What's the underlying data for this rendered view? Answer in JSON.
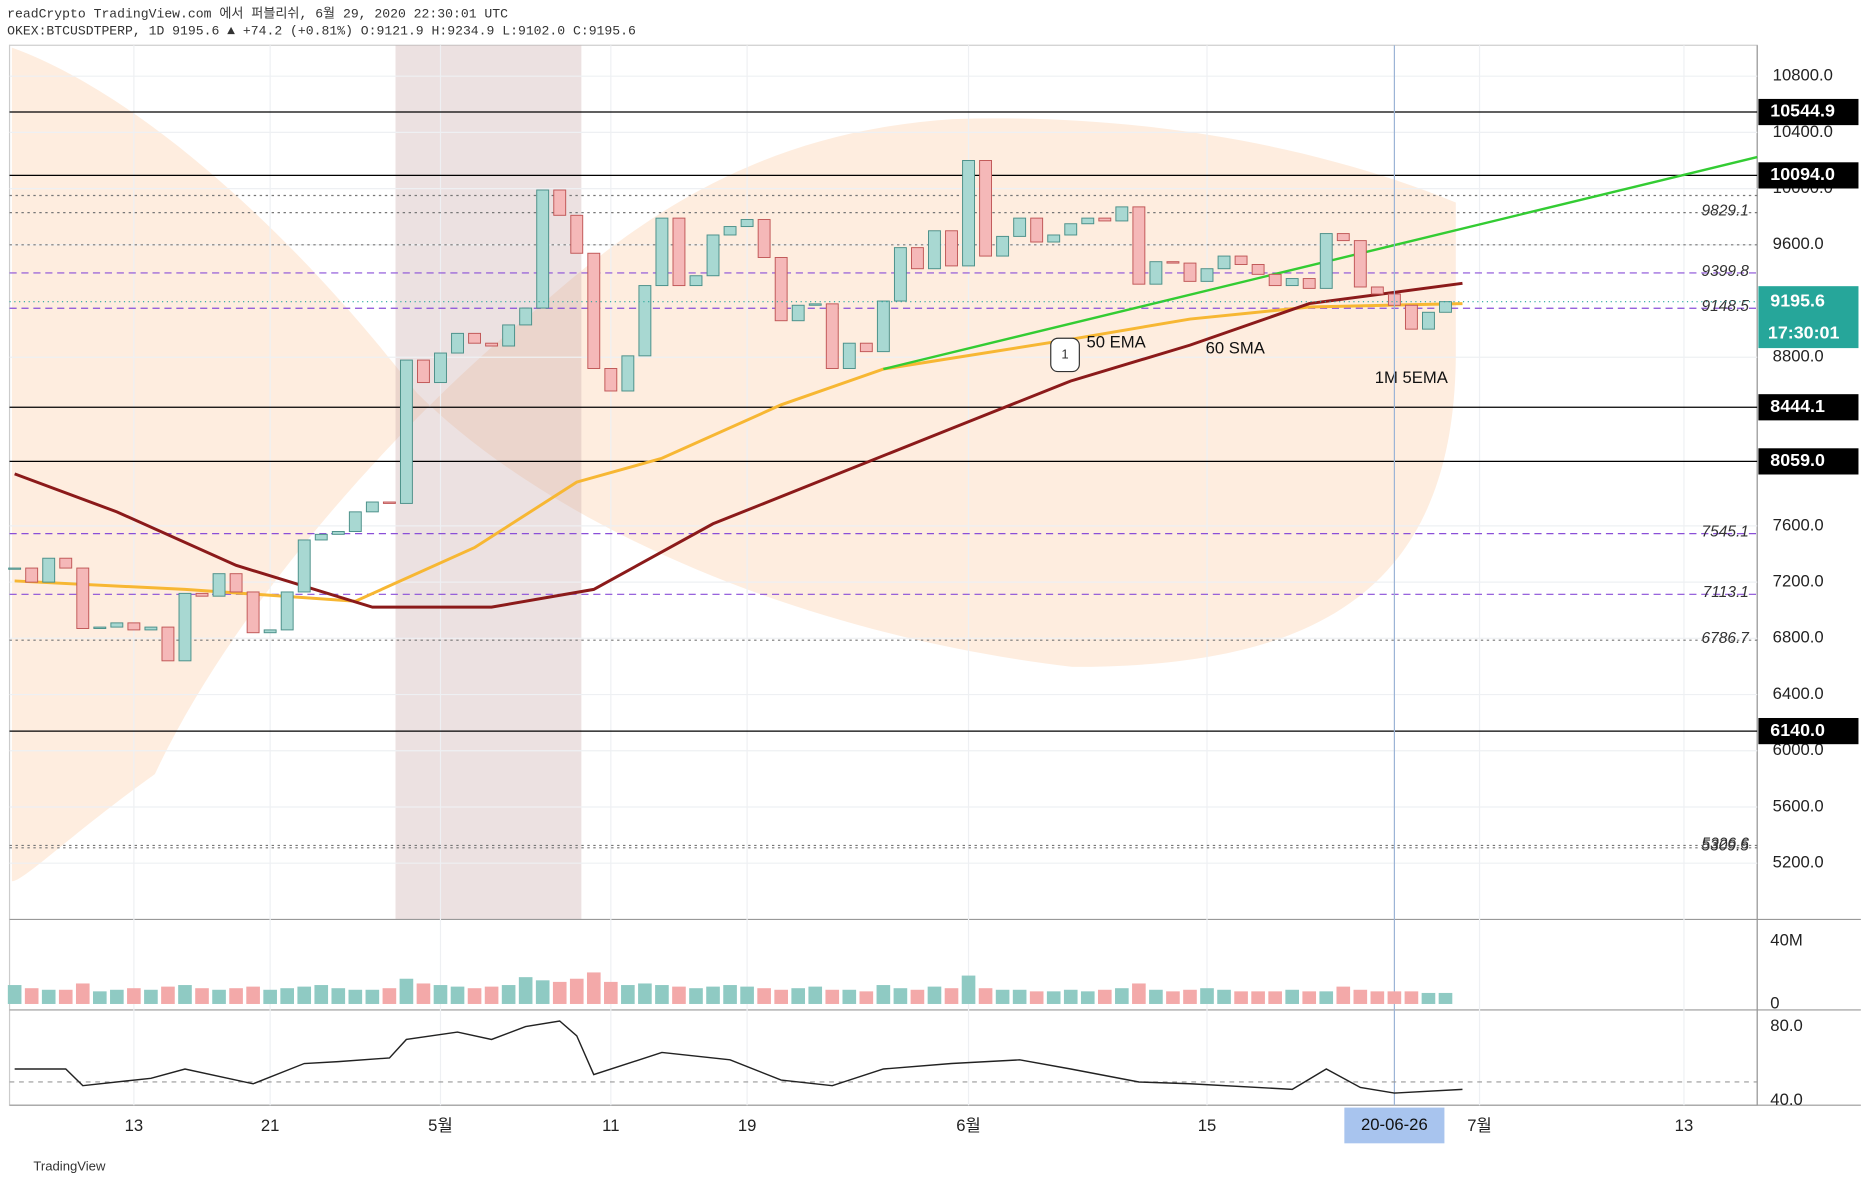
{
  "header": [
    "readCrypto TradingView.com 에서 퍼블리쉬, 6월 29, 2020 22:30:01 UTC",
    "OKEX:BTCUSDTPERP, 1D 9195.6 ▲ +74.2 (+0.81%) O:9121.9 H:9234.9 L:9102.0 C:9195.6"
  ],
  "chart_data": {
    "type": "candlestick",
    "x": [
      0,
      1,
      2,
      3,
      4,
      5,
      6,
      7,
      8,
      9,
      10,
      11,
      12,
      13,
      14,
      15,
      16,
      17,
      18,
      19,
      20,
      21,
      22,
      23,
      24,
      25,
      26,
      27,
      28,
      29,
      30,
      31,
      32,
      33,
      34,
      35,
      36,
      37,
      38,
      39,
      40,
      41,
      42,
      43,
      44,
      45,
      46,
      47,
      48,
      49,
      50,
      51,
      52,
      53,
      54,
      55,
      56,
      57,
      58,
      59,
      60,
      61,
      62,
      63,
      64,
      65,
      66,
      67,
      68,
      69,
      70,
      71,
      72,
      73,
      74,
      75,
      76,
      77,
      78,
      79,
      80,
      81,
      82,
      83,
      84
    ],
    "close": [
      7300,
      7200,
      7370,
      7300,
      6870,
      6880,
      6910,
      6860,
      6880,
      6640,
      7120,
      7100,
      7260,
      7130,
      6840,
      6860,
      7130,
      7500,
      7540,
      7560,
      7700,
      7770,
      7760,
      8780,
      8620,
      8830,
      8970,
      8900,
      8880,
      9030,
      9150,
      9990,
      9810,
      9540,
      8720,
      8560,
      8810,
      9310,
      9790,
      9310,
      9380,
      9670,
      9730,
      9780,
      9510,
      9060,
      9170,
      9180,
      8720,
      8900,
      8840,
      9200,
      9580,
      9430,
      9700,
      9450,
      10200,
      9520,
      9660,
      9790,
      9620,
      9670,
      9750,
      9790,
      9770,
      9870,
      9320,
      9480,
      9470,
      9340,
      9430,
      9520,
      9460,
      9390,
      9310,
      9360,
      9290,
      9680,
      9630,
      9300,
      9250,
      9170,
      9000,
      9120,
      9195.6
    ],
    "up_color": "#a8d8d2",
    "down_color": "#f5b8b8",
    "xlim": [
      -0.3,
      102.3
    ],
    "ylim": [
      4800,
      11020
    ],
    "xticks": [
      {
        "value": 7,
        "label": "13"
      },
      {
        "value": 15,
        "label": "21"
      },
      {
        "value": 25,
        "label": "5월"
      },
      {
        "value": 35,
        "label": "11"
      },
      {
        "value": 43,
        "label": "19"
      },
      {
        "value": 56,
        "label": "6월"
      },
      {
        "value": 70,
        "label": "15"
      },
      {
        "value": 86,
        "label": "7월"
      },
      {
        "value": 98,
        "label": "13"
      }
    ],
    "yticks": [
      {
        "value": 5200,
        "label": "5200.0"
      },
      {
        "value": 5600,
        "label": "5600.0"
      },
      {
        "value": 6000,
        "label": "6000.0"
      },
      {
        "value": 6400,
        "label": "6400.0"
      },
      {
        "value": 6800,
        "label": "6800.0"
      },
      {
        "value": 7200,
        "label": "7200.0"
      },
      {
        "value": 7600,
        "label": "7600.0"
      },
      {
        "value": 8800,
        "label": "8800.0"
      },
      {
        "value": 9600,
        "label": "9600.0"
      },
      {
        "value": 10000,
        "label": "10000.0"
      },
      {
        "value": 10400,
        "label": "10400.0"
      },
      {
        "value": 10800,
        "label": "10800.0"
      }
    ],
    "levels": [
      {
        "value": 10544.9,
        "label": "10544.9",
        "style": "box"
      },
      {
        "value": 10094,
        "label": "10094.0",
        "style": "box"
      },
      {
        "value": 8444.1,
        "label": "8444.1",
        "style": "box"
      },
      {
        "value": 8059,
        "label": "8059.0",
        "style": "box"
      },
      {
        "value": 6140,
        "label": "6140.0",
        "style": "box"
      },
      {
        "value": 9951,
        "style": "dotted"
      },
      {
        "value": 9829.1,
        "label": "9829.1",
        "style": "dotted"
      },
      {
        "value": 9600,
        "style": "dotted"
      },
      {
        "value": 9399.8,
        "label": "9399.8",
        "style": "dashed"
      },
      {
        "value": 9148.5,
        "label": "9148.5",
        "style": "dashed"
      },
      {
        "value": 7545.1,
        "label": "7545.1",
        "style": "dashed"
      },
      {
        "value": 7113.1,
        "label": "7113.1",
        "style": "dashed"
      },
      {
        "value": 6786.7,
        "label": "6786.7",
        "style": "dotted"
      },
      {
        "value": 5326.6,
        "label": "5326.6",
        "style": "dotted"
      },
      {
        "value": 5309.5,
        "label": "5309.5",
        "style": "dotted"
      }
    ],
    "last_price": {
      "value": 9195.6,
      "label": "9195.6",
      "countdown": "17:30:01",
      "color": "#26a69a"
    },
    "series": [
      {
        "name": "50 EMA",
        "color": "#f7b733",
        "x": [
          0,
          10,
          20,
          27,
          33,
          38,
          45,
          51,
          62,
          69,
          76,
          85
        ],
        "values": [
          7208,
          7148,
          7064,
          7446,
          7912,
          8081,
          8462,
          8716,
          8928,
          9072,
          9157,
          9182
        ]
      },
      {
        "name": "60 SMA",
        "color": "#8b1a1a",
        "x": [
          0,
          6,
          13,
          21,
          28,
          34,
          41,
          48,
          55,
          62,
          69,
          76,
          85
        ],
        "values": [
          7970,
          7700,
          7319,
          7022,
          7022,
          7148,
          7615,
          7954,
          8293,
          8631,
          8886,
          9182,
          9326
        ]
      },
      {
        "name": "1M 5EMA",
        "color": "#e05050",
        "x": [],
        "values": []
      }
    ],
    "trendline": {
      "color": "#33cc33",
      "x": [
        51,
        102.3
      ],
      "values": [
        8716,
        10224
      ]
    },
    "marker": "1",
    "crosshair": {
      "x": 81,
      "label": "20-06-26"
    },
    "volume": {
      "values": [
        12,
        10,
        9,
        9,
        13,
        8,
        9,
        10,
        9,
        11,
        12,
        10,
        9,
        10,
        11,
        9,
        10,
        11,
        12,
        10,
        9,
        9,
        10,
        16,
        13,
        12,
        11,
        10,
        11,
        12,
        17,
        15,
        14,
        16,
        20,
        14,
        12,
        13,
        12,
        11,
        10,
        11,
        12,
        11,
        10,
        9,
        10,
        11,
        9,
        9,
        8,
        12,
        10,
        9,
        11,
        10,
        18,
        10,
        9,
        9,
        8,
        8,
        9,
        8,
        9,
        10,
        13,
        9,
        8,
        9,
        10,
        9,
        8,
        8,
        8,
        9,
        8,
        8,
        11,
        9,
        8,
        8,
        8,
        7,
        7
      ],
      "ylim": [
        0,
        53.6
      ],
      "yticks": [
        {
          "value": 0,
          "label": "0"
        },
        {
          "value": 40,
          "label": "40M"
        }
      ]
    },
    "rsi": {
      "color": "#222222",
      "x": [
        0,
        3,
        4,
        8,
        10,
        14,
        17,
        19,
        22,
        23,
        26,
        28,
        30,
        32,
        33,
        34,
        38,
        42,
        45,
        48,
        51,
        55,
        59,
        62,
        66,
        69,
        75,
        77,
        79,
        81,
        85
      ],
      "values": [
        57,
        57,
        48,
        52,
        57,
        49,
        60,
        61,
        63,
        73,
        77,
        73,
        80,
        83,
        75,
        54,
        66,
        62,
        51,
        48,
        57,
        60,
        62,
        57,
        50,
        49,
        46,
        57,
        47,
        44,
        46
      ],
      "ylim": [
        37.4,
        89
      ],
      "yticks": [
        {
          "value": 40,
          "label": "40.0"
        },
        {
          "value": 80,
          "label": "80.0"
        }
      ]
    }
  },
  "footer": "TradingView"
}
